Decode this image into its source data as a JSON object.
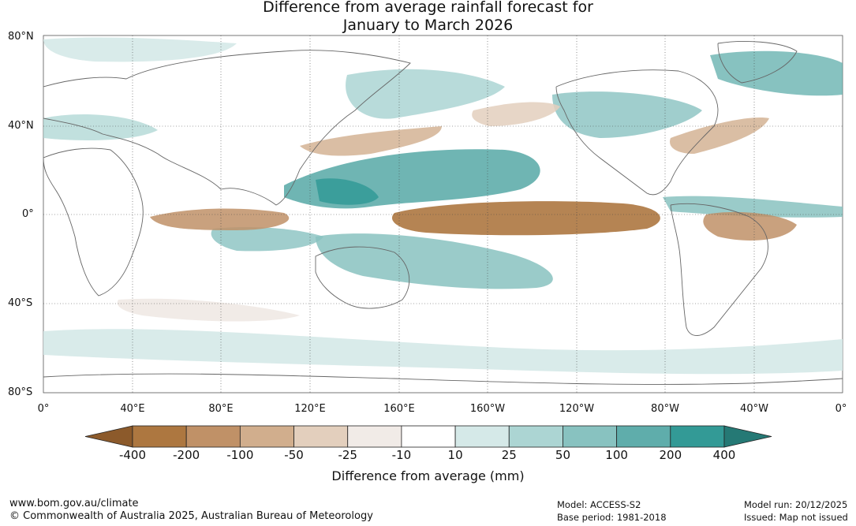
{
  "title": {
    "line1": "Difference from average rainfall forecast for",
    "line2": "January to March 2026"
  },
  "lat_labels": [
    "80°N",
    "40°N",
    "0°",
    "40°S",
    "80°S"
  ],
  "lon_labels": [
    "0°",
    "40°E",
    "80°E",
    "120°E",
    "160°E",
    "160°W",
    "120°W",
    "80°W",
    "40°W",
    "0°"
  ],
  "colorbar": {
    "ticks": [
      "-400",
      "-200",
      "-100",
      "-50",
      "-25",
      "-10",
      "10",
      "25",
      "50",
      "100",
      "200",
      "400"
    ],
    "colors": [
      "#8c5a2b",
      "#ad7740",
      "#c09167",
      "#d1ae8d",
      "#e3cfbd",
      "#f1ebe7",
      "#ffffff",
      "#d5e9e8",
      "#acd5d3",
      "#88c2c0",
      "#5fadab",
      "#339a96",
      "#257975"
    ],
    "label": "Difference from average (mm)"
  },
  "footer": {
    "url": "www.bom.gov.au/climate",
    "copyright": "© Commonwealth of Australia 2025, Australian Bureau of Meteorology",
    "model": "Model: ACCESS-S2",
    "base_period": "Base period: 1981-2018",
    "model_run": "Model run: 20/12/2025",
    "issued": "Issued: Map not issued"
  }
}
